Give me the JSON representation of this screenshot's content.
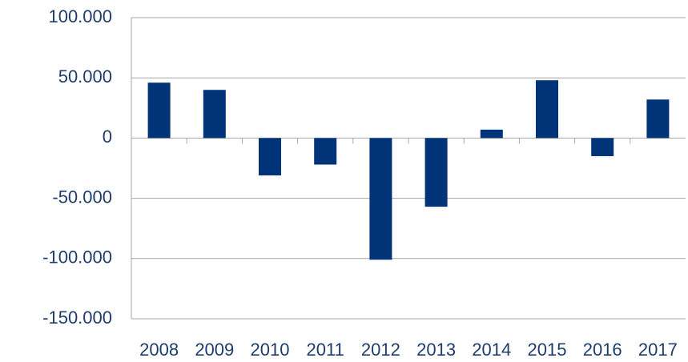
{
  "chart_data": {
    "type": "bar",
    "categories": [
      "2008",
      "2009",
      "2010",
      "2011",
      "2012",
      "2013",
      "2014",
      "2015",
      "2016",
      "2017"
    ],
    "values": [
      46000,
      40000,
      -31000,
      -22000,
      -101000,
      -57000,
      7000,
      48000,
      -15000,
      32000
    ],
    "color": "#003378",
    "ylim": [
      -150000,
      100000
    ],
    "yticks": [
      {
        "value": -150000,
        "label": "-150.000"
      },
      {
        "value": -100000,
        "label": "-100.000"
      },
      {
        "value": -50000,
        "label": "-50.000"
      },
      0,
      {
        "value": 50000,
        "label": "50.000"
      },
      {
        "value": 100000,
        "label": "100.000"
      }
    ],
    "grid": true
  }
}
